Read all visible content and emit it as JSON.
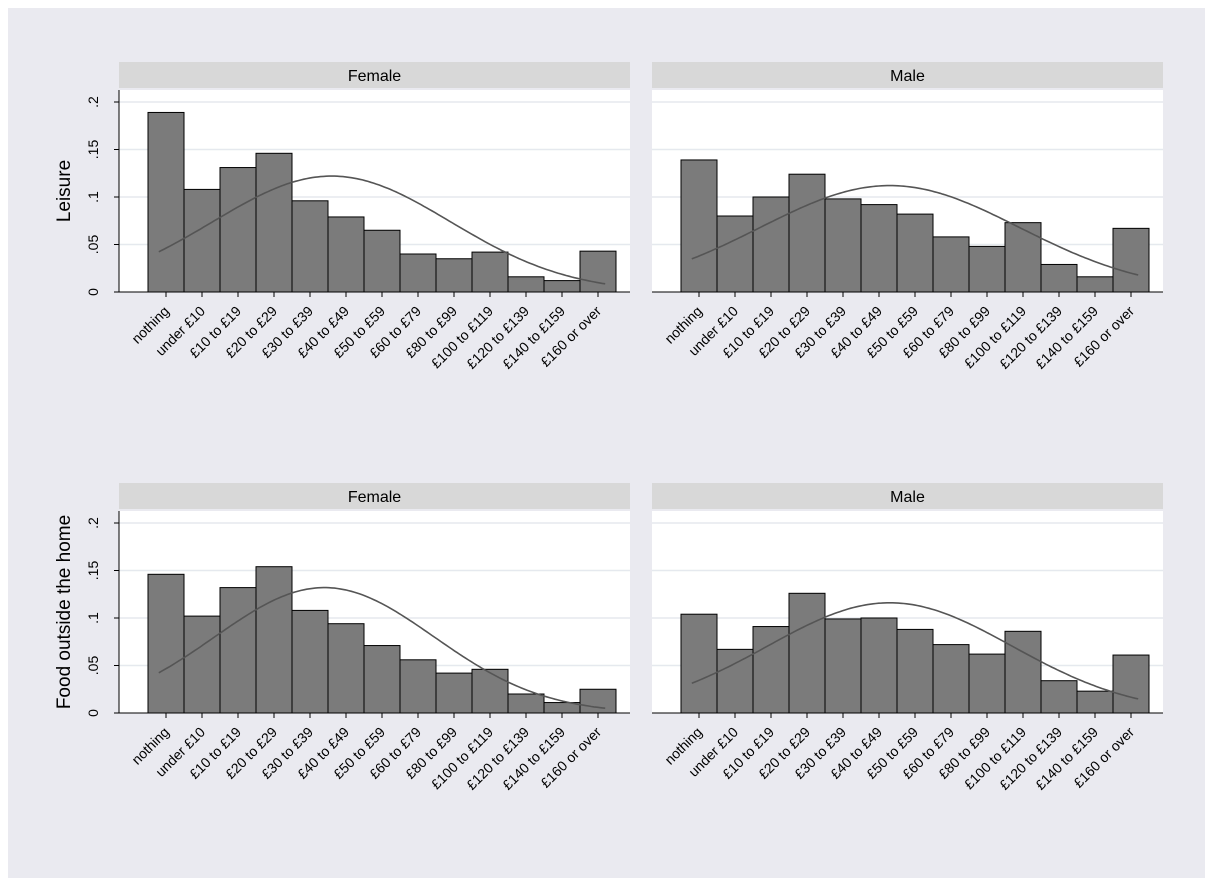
{
  "colors": {
    "outer_bg": "#eaeaf0",
    "plot_bg": "#ffffff",
    "strip_bg": "#d8d8d8",
    "gridline": "#e5e9ee",
    "bar_fill": "#7b7b7b",
    "bar_stroke": "#000000",
    "curve": "#555555"
  },
  "chart_data": {
    "type": "bar",
    "categories": [
      "nothing",
      "under £10",
      "£10 to £19",
      "£20 to £29",
      "£30 to £39",
      "£40 to £49",
      "£50 to £59",
      "£60 to £79",
      "£80 to £99",
      "£100 to £119",
      "£120 to £139",
      "£140 to £159",
      "£160 or over"
    ],
    "yticks": [
      {
        "value": 0,
        "label": "0"
      },
      {
        "value": 0.05,
        "label": ".05"
      },
      {
        "value": 0.1,
        "label": ".1"
      },
      {
        "value": 0.15,
        "label": ".15"
      },
      {
        "value": 0.2,
        "label": ".2"
      }
    ],
    "ylim": [
      0,
      0.2
    ],
    "grid": true,
    "overlay": "normal density curve",
    "rows": [
      {
        "ylabel": "Leisure",
        "panels": [
          {
            "label": "Female",
            "values": [
              0.189,
              0.108,
              0.131,
              0.146,
              0.096,
              0.079,
              0.065,
              0.04,
              0.035,
              0.042,
              0.016,
              0.012,
              0.043
            ],
            "curve": {
              "mean": 4.6,
              "sd": 3.3,
              "peak": 0.122
            }
          },
          {
            "label": "Male",
            "values": [
              0.139,
              0.08,
              0.1,
              0.124,
              0.098,
              0.092,
              0.082,
              0.058,
              0.048,
              0.073,
              0.029,
              0.016,
              0.067
            ],
            "curve": {
              "mean": 5.3,
              "sd": 3.6,
              "peak": 0.112
            }
          }
        ]
      },
      {
        "ylabel": "Food outside the home",
        "panels": [
          {
            "label": "Female",
            "values": [
              0.146,
              0.102,
              0.132,
              0.154,
              0.108,
              0.094,
              0.071,
              0.056,
              0.042,
              0.046,
              0.02,
              0.011,
              0.025
            ],
            "curve": {
              "mean": 4.4,
              "sd": 3.05,
              "peak": 0.132
            }
          },
          {
            "label": "Male",
            "values": [
              0.104,
              0.067,
              0.091,
              0.126,
              0.099,
              0.1,
              0.088,
              0.072,
              0.062,
              0.086,
              0.034,
              0.023,
              0.061
            ],
            "curve": {
              "mean": 5.3,
              "sd": 3.4,
              "peak": 0.116
            }
          }
        ]
      }
    ]
  }
}
